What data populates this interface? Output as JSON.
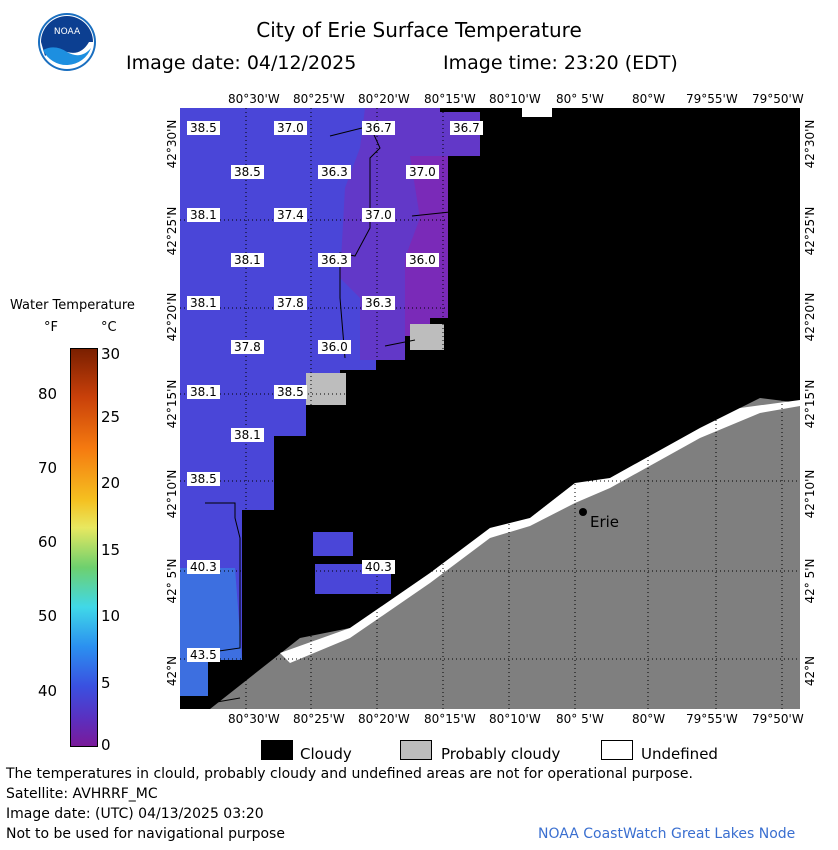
{
  "header": {
    "title": "City of Erie Surface Temperature",
    "image_date": "Image date: 04/12/2025",
    "image_time": "Image time: 23:20 (EDT)"
  },
  "logo": {
    "icon": "noaa-logo",
    "text": "NOAA"
  },
  "map": {
    "lon_labels": [
      "80°30'W",
      "80°25'W",
      "80°20'W",
      "80°15'W",
      "80°10'W",
      "80° 5'W",
      "80°W",
      "79°55'W",
      "79°50'W"
    ],
    "lat_labels": [
      "42°30'N",
      "42°25'N",
      "42°20'N",
      "42°15'N",
      "42°10'N",
      "42° 5'N",
      "42°N"
    ],
    "city": "Erie",
    "temperature_labels": [
      "38.5",
      "37.0",
      "36.7",
      "36.7",
      "38.5",
      "36.3",
      "37.0",
      "38.1",
      "37.4",
      "37.0",
      "38.1",
      "36.3",
      "36.0",
      "38.1",
      "37.8",
      "36.3",
      "37.8",
      "36.0",
      "38.1",
      "38.5",
      "38.1",
      "38.5",
      "40.3",
      "40.3",
      "43.5"
    ]
  },
  "legend": {
    "title": "Water Temperature",
    "unit_f": "°F",
    "unit_c": "°C",
    "f_ticks": [
      "80",
      "70",
      "60",
      "50",
      "40"
    ],
    "c_ticks": [
      "30",
      "25",
      "20",
      "15",
      "10",
      "5",
      "0"
    ]
  },
  "key": {
    "cloudy": "Cloudy",
    "probably_cloudy": "Probably cloudy",
    "undefined": "Undefined",
    "colors": {
      "cloudy": "#000000",
      "probably_cloudy": "#bdbdbd",
      "undefined": "#ffffff",
      "land": "#7f7f7f"
    }
  },
  "footer": {
    "note": "The temperatures in clould, probably cloudy and undefined areas are not for operational purpose.",
    "satellite": "Satellite: AVHRRF_MC",
    "utc_date": "Image date: (UTC) 04/13/2025  03:20",
    "navigation": "Not to be used for navigational purpose",
    "credit": "NOAA CoastWatch Great Lakes Node"
  }
}
